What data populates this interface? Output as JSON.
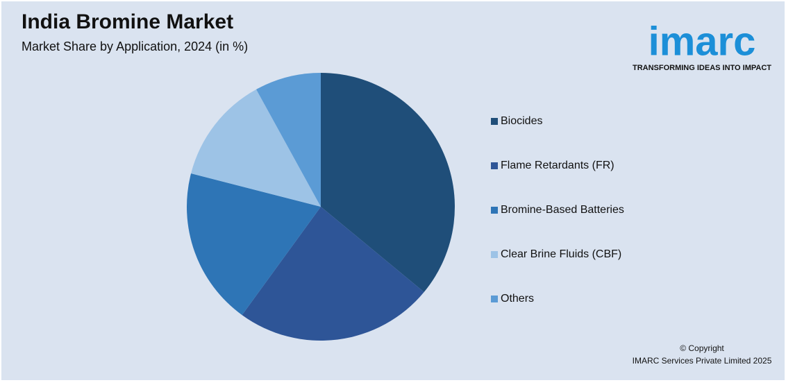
{
  "chart_data": {
    "type": "pie",
    "title": "India Bromine Market",
    "subtitle": "Market Share by Application, 2024 (in %)",
    "categories": [
      "Biocides",
      "Flame Retardants (FR)",
      "Bromine-Based Batteries",
      "Clear Brine Fluids (CBF)",
      "Others"
    ],
    "values": [
      36,
      24,
      19,
      13,
      8
    ],
    "colors": [
      "#1f4e79",
      "#2e5597",
      "#2e75b6",
      "#9dc3e6",
      "#5b9bd5"
    ]
  },
  "logo": {
    "name": "imarc",
    "tagline": "TRANSFORMING IDEAS INTO IMPACT"
  },
  "footer": {
    "copyright": "© Copyright",
    "company": "IMARC Services Private Limited 2025"
  }
}
